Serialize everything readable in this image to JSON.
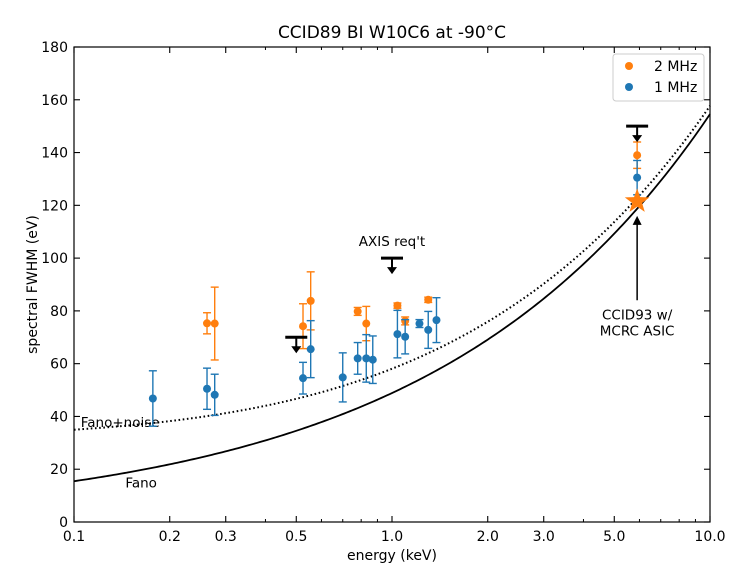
{
  "chart_data": {
    "type": "scatter",
    "title": "CCID89 BI W10C6 at -90°C",
    "xlabel": "energy (keV)",
    "ylabel": "spectral FWHM (eV)",
    "xscale": "log",
    "xlim": [
      0.1,
      10.0
    ],
    "ylim": [
      0,
      180
    ],
    "xticks": [
      {
        "value": 0.1,
        "label": "0.1"
      },
      {
        "value": 0.2,
        "label": "0.2"
      },
      {
        "value": 0.3,
        "label": "0.3"
      },
      {
        "value": 0.5,
        "label": "0.5"
      },
      {
        "value": 1.0,
        "label": "1.0"
      },
      {
        "value": 2.0,
        "label": "2.0"
      },
      {
        "value": 3.0,
        "label": "3.0"
      },
      {
        "value": 5.0,
        "label": "5.0"
      },
      {
        "value": 10.0,
        "label": "10.0"
      }
    ],
    "yticks": [
      {
        "value": 0,
        "label": "0"
      },
      {
        "value": 20,
        "label": "20"
      },
      {
        "value": 40,
        "label": "40"
      },
      {
        "value": 60,
        "label": "60"
      },
      {
        "value": 80,
        "label": "80"
      },
      {
        "value": 100,
        "label": "100"
      },
      {
        "value": 120,
        "label": "120"
      },
      {
        "value": 140,
        "label": "140"
      },
      {
        "value": 160,
        "label": "160"
      },
      {
        "value": 180,
        "label": "180"
      }
    ],
    "legend": {
      "position": "top-right",
      "entries": [
        "2 MHz",
        "1 MHz"
      ]
    },
    "colors": {
      "2 MHz": "#ff7f0e",
      "1 MHz": "#1f77b4"
    },
    "series": [
      {
        "name": "2 MHz",
        "points": [
          {
            "x": 0.262,
            "y": 75.3,
            "err": 4.0
          },
          {
            "x": 0.277,
            "y": 75.2,
            "err": 13.8
          },
          {
            "x": 0.525,
            "y": 74.2,
            "err": 8.5
          },
          {
            "x": 0.555,
            "y": 83.8,
            "err": 11.0
          },
          {
            "x": 0.78,
            "y": 79.8,
            "err": 1.5
          },
          {
            "x": 0.83,
            "y": 75.2,
            "err": 6.5
          },
          {
            "x": 1.04,
            "y": 82.0,
            "err": 1.0
          },
          {
            "x": 1.1,
            "y": 76.2,
            "err": 1.5
          },
          {
            "x": 1.3,
            "y": 84.2,
            "err": 1.0
          },
          {
            "x": 5.9,
            "y": 139.0,
            "err": 5.0
          }
        ]
      },
      {
        "name": "1 MHz",
        "points": [
          {
            "x": 0.177,
            "y": 46.8,
            "err": 10.5
          },
          {
            "x": 0.262,
            "y": 50.5,
            "err": 7.8
          },
          {
            "x": 0.277,
            "y": 48.2,
            "err": 7.8
          },
          {
            "x": 0.525,
            "y": 54.5,
            "err": 6.0
          },
          {
            "x": 0.555,
            "y": 65.5,
            "err": 10.8
          },
          {
            "x": 0.7,
            "y": 54.8,
            "err": 9.3
          },
          {
            "x": 0.78,
            "y": 62.0,
            "err": 6.0
          },
          {
            "x": 0.83,
            "y": 62.0,
            "err": 9.0
          },
          {
            "x": 0.87,
            "y": 61.5,
            "err": 9.0
          },
          {
            "x": 1.04,
            "y": 71.2,
            "err": 9.0
          },
          {
            "x": 1.1,
            "y": 70.2,
            "err": 6.5
          },
          {
            "x": 1.22,
            "y": 75.2,
            "err": 1.5
          },
          {
            "x": 1.3,
            "y": 72.8,
            "err": 7.0
          },
          {
            "x": 1.38,
            "y": 76.5,
            "err": 8.5
          },
          {
            "x": 5.9,
            "y": 130.5,
            "err": 6.5
          }
        ]
      }
    ],
    "reference_points": [
      {
        "name": "CCID93 w/ MCRC ASIC",
        "x": 5.9,
        "y": 121.5,
        "marker": "star",
        "color": "#ff7f0e"
      }
    ],
    "upper_limits": [
      {
        "x": 0.5,
        "y": 70.0
      },
      {
        "x": 1.0,
        "y": 100.0
      },
      {
        "x": 5.9,
        "y": 150.0
      }
    ],
    "curves": [
      {
        "name": "Fano+noise",
        "style": "dotted",
        "fano": 0.118,
        "w_ev": 3.65,
        "noise_e": 3.65,
        "label_at": {
          "x": 0.105,
          "y": 36
        }
      },
      {
        "name": "Fano",
        "style": "solid",
        "fano": 0.118,
        "w_ev": 3.65,
        "noise_e": 0,
        "label_at": {
          "x": 0.145,
          "y": 13
        }
      }
    ],
    "annotations": [
      {
        "text": "AXIS req't",
        "x": 1.0,
        "y": 104.5
      },
      {
        "lines": [
          "CCID93 w/",
          "MCRC ASIC"
        ],
        "x": 5.9,
        "y": 81,
        "arrow_to": {
          "x": 5.9,
          "y": 116
        }
      }
    ]
  }
}
